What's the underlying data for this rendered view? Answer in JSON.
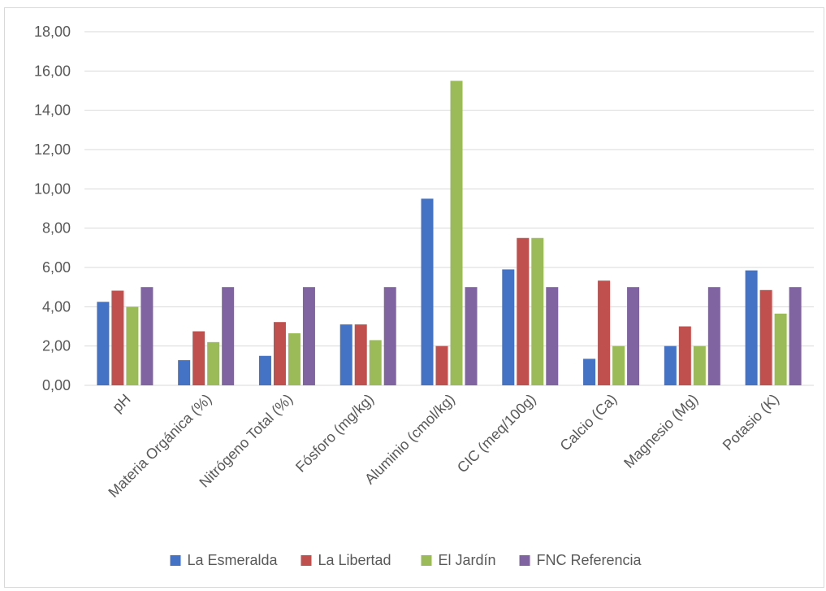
{
  "chart_data": {
    "type": "bar",
    "categories": [
      "pH",
      "Materia Orgánica (%)",
      "Nitrógeno Total (%)",
      "Fósforo (mg/kg)",
      "Aluminio (cmol/kg)",
      "CIC (meq/100g)",
      "Calcio (Ca)",
      "Magnesio (Mg)",
      "Potasio (K)"
    ],
    "series": [
      {
        "name": "La Esmeralda",
        "color": "#4472c4",
        "values": [
          4.25,
          1.28,
          1.5,
          3.1,
          9.5,
          5.9,
          1.35,
          2.0,
          5.85
        ]
      },
      {
        "name": "La Libertad",
        "color": "#c0504d",
        "values": [
          4.82,
          2.75,
          3.22,
          3.1,
          2.0,
          7.5,
          5.33,
          3.0,
          4.85
        ]
      },
      {
        "name": "El Jardín",
        "color": "#9bbb59",
        "values": [
          4.0,
          2.2,
          2.65,
          2.3,
          15.5,
          7.5,
          2.0,
          2.0,
          3.65
        ]
      },
      {
        "name": "FNC Referencia",
        "color": "#8064a2",
        "values": [
          5.0,
          5.0,
          5.0,
          5.0,
          5.0,
          5.0,
          5.0,
          5.0,
          5.0
        ]
      }
    ],
    "yticks": [
      "0,00",
      "2,00",
      "4,00",
      "6,00",
      "8,00",
      "10,00",
      "12,00",
      "14,00",
      "16,00",
      "18,00"
    ],
    "ylim": [
      0,
      18
    ],
    "grid": true,
    "legend_position": "bottom"
  }
}
